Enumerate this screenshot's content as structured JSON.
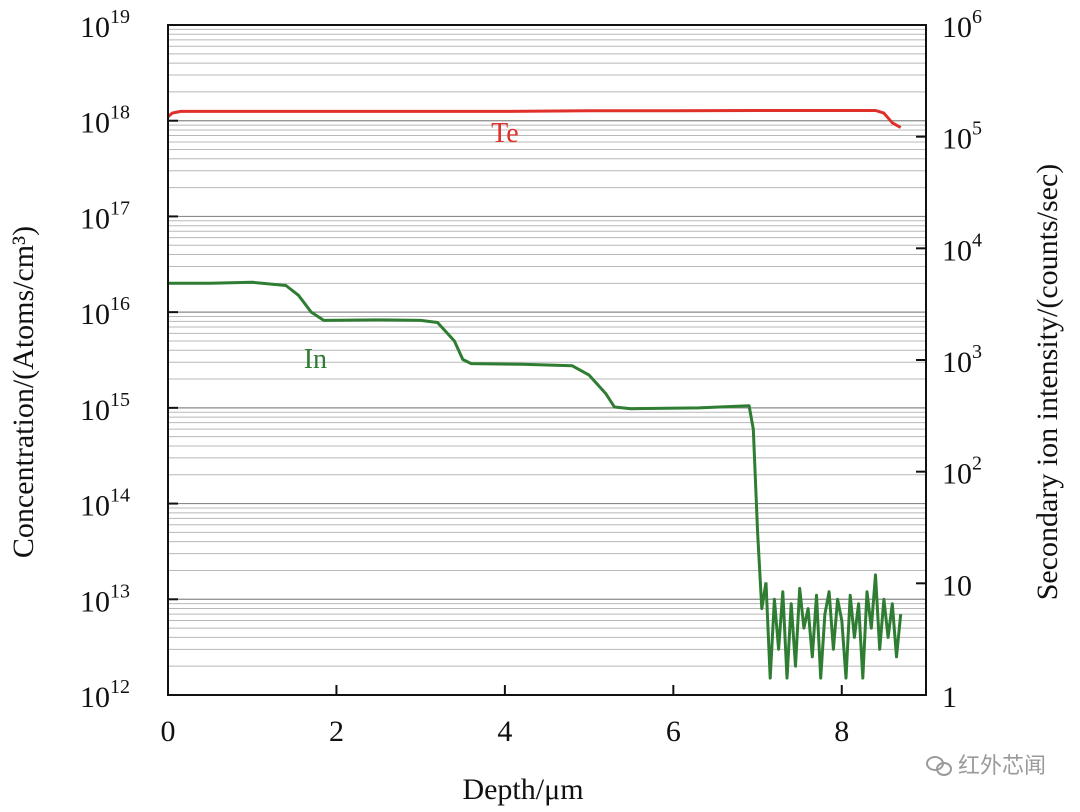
{
  "chart_data": {
    "type": "line",
    "xlabel": "Depth/μm",
    "ylabel_left": "Concentration/(Atoms/cm³)",
    "ylabel_right": "Secondary ion intensity/(counts/sec)",
    "xlim": [
      0,
      9
    ],
    "x_ticks": [
      0,
      2,
      4,
      6,
      8
    ],
    "left_scale": "log",
    "ylim_left": [
      1000000000000.0,
      1e+19
    ],
    "left_tick_labels": [
      {
        "base": "10",
        "exp": "19",
        "value": 1e+19
      },
      {
        "base": "10",
        "exp": "18",
        "value": 1e+18
      },
      {
        "base": "10",
        "exp": "17",
        "value": 1e+17
      },
      {
        "base": "10",
        "exp": "16",
        "value": 1e+16
      },
      {
        "base": "10",
        "exp": "15",
        "value": 1000000000000000.0
      },
      {
        "base": "10",
        "exp": "14",
        "value": 100000000000000.0
      },
      {
        "base": "10",
        "exp": "13",
        "value": 10000000000000.0
      },
      {
        "base": "10",
        "exp": "12",
        "value": 1000000000000.0
      }
    ],
    "right_scale": "log",
    "ylim_right": [
      1,
      1000000.0
    ],
    "right_tick_labels": [
      {
        "base": "10",
        "exp": "6",
        "value": 1000000.0
      },
      {
        "base": "10",
        "exp": "5",
        "value": 100000.0
      },
      {
        "base": "10",
        "exp": "4",
        "value": 10000.0
      },
      {
        "base": "10",
        "exp": "3",
        "value": 1000.0
      },
      {
        "base": "10",
        "exp": "2",
        "value": 100.0
      },
      {
        "base": "10",
        "exp": "",
        "value": 10
      },
      {
        "base": "1",
        "exp": "",
        "value": 1
      }
    ],
    "grid": "horizontal",
    "series": [
      {
        "name": "Te",
        "color": "#e0302a",
        "x": [
          0.0,
          0.05,
          0.15,
          0.5,
          1.0,
          2.0,
          3.0,
          4.0,
          5.0,
          6.0,
          7.0,
          8.0,
          8.4,
          8.5,
          8.6,
          8.7
        ],
        "y": [
          1.1e+18,
          1.2e+18,
          1.25e+18,
          1.25e+18,
          1.25e+18,
          1.25e+18,
          1.25e+18,
          1.25e+18,
          1.27e+18,
          1.27e+18,
          1.28e+18,
          1.28e+18,
          1.28e+18,
          1.2e+18,
          9.5e+17,
          8.5e+17
        ]
      },
      {
        "name": "In",
        "color": "#2e7d32",
        "x": [
          0.0,
          0.5,
          1.0,
          1.4,
          1.55,
          1.7,
          1.85,
          2.5,
          3.0,
          3.2,
          3.4,
          3.5,
          3.6,
          4.2,
          4.8,
          5.0,
          5.2,
          5.3,
          5.5,
          6.3,
          6.9,
          6.95,
          7.0,
          7.05,
          7.1
        ],
        "y": [
          2e+16,
          2e+16,
          2.05e+16,
          1.9e+16,
          1.5e+16,
          1e+16,
          8200000000000000.0,
          8300000000000000.0,
          8200000000000000.0,
          7800000000000000.0,
          5000000000000000.0,
          3200000000000000.0,
          2900000000000000.0,
          2850000000000000.0,
          2750000000000000.0,
          2200000000000000.0,
          1400000000000000.0,
          1020000000000000.0,
          980000000000000.0,
          1000000000000000.0,
          1050000000000000.0,
          600000000000000.0,
          50000000000000.0,
          8000000000000.0,
          15000000000000.0
        ]
      },
      {
        "name": "In-noise",
        "color": "#2e7d32",
        "x": [
          7.1,
          7.15,
          7.2,
          7.25,
          7.3,
          7.35,
          7.4,
          7.45,
          7.5,
          7.55,
          7.6,
          7.65,
          7.7,
          7.75,
          7.8,
          7.85,
          7.9,
          7.95,
          8.0,
          8.05,
          8.1,
          8.15,
          8.2,
          8.25,
          8.3,
          8.35,
          8.4,
          8.45,
          8.5,
          8.55,
          8.6,
          8.65,
          8.7
        ],
        "y": [
          15000000000000.0,
          1500000000000.0,
          10000000000000.0,
          3000000000000.0,
          12000000000000.0,
          1500000000000.0,
          9000000000000.0,
          2000000000000.0,
          13000000000000.0,
          5000000000000.0,
          8000000000000.0,
          2500000000000.0,
          11000000000000.0,
          1500000000000.0,
          7000000000000.0,
          12000000000000.0,
          3000000000000.0,
          10000000000000.0,
          6000000000000.0,
          1500000000000.0,
          11000000000000.0,
          4000000000000.0,
          9000000000000.0,
          1500000000000.0,
          12000000000000.0,
          5000000000000.0,
          18000000000000.0,
          3000000000000.0,
          10000000000000.0,
          4000000000000.0,
          9000000000000.0,
          2500000000000.0,
          7000000000000.0
        ]
      }
    ],
    "annotations": [
      {
        "text": "Te",
        "color": "#e0302a",
        "x": 4.0,
        "y": 6e+17
      },
      {
        "text": "In",
        "color": "#2e7d32",
        "x": 1.75,
        "y": 2600000000000000.0
      }
    ]
  },
  "watermark": {
    "text": "红外芯闻"
  }
}
